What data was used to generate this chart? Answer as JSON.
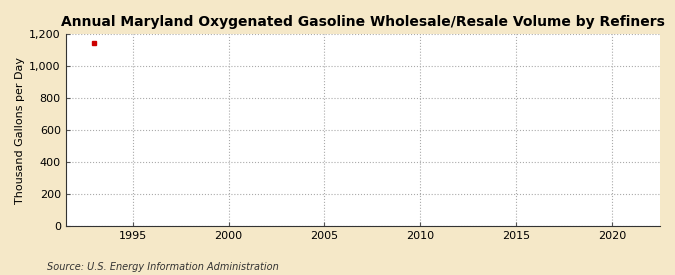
{
  "title": "Annual Maryland Oxygenated Gasoline Wholesale/Resale Volume by Refiners",
  "ylabel": "Thousand Gallons per Day",
  "source_text": "Source: U.S. Energy Information Administration",
  "outer_background_color": "#f5e8c8",
  "plot_background_color": "#ffffff",
  "data_x": [
    1993
  ],
  "data_y": [
    1148
  ],
  "marker_color": "#cc0000",
  "marker_style": "s",
  "marker_size": 3.5,
  "xlim": [
    1991.5,
    2022.5
  ],
  "ylim": [
    0,
    1200
  ],
  "xticks": [
    1995,
    2000,
    2005,
    2010,
    2015,
    2020
  ],
  "yticks": [
    0,
    200,
    400,
    600,
    800,
    1000,
    1200
  ],
  "grid_color": "#aaaaaa",
  "grid_linestyle": ":",
  "title_fontsize": 10,
  "title_fontweight": "bold",
  "axis_fontsize": 8,
  "tick_fontsize": 8,
  "source_fontsize": 7
}
